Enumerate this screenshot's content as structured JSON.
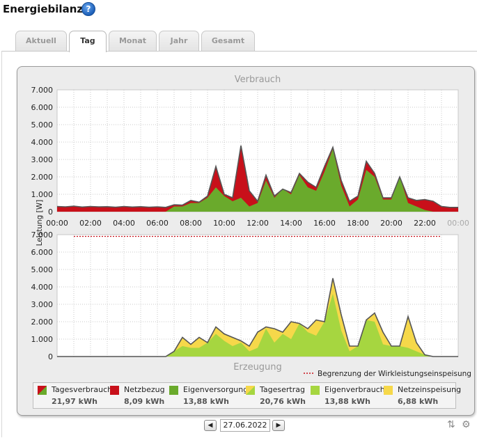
{
  "page": {
    "title": "Energiebilanz"
  },
  "tabs": [
    {
      "label": "Aktuell",
      "active": false
    },
    {
      "label": "Tag",
      "active": true
    },
    {
      "label": "Monat",
      "active": false
    },
    {
      "label": "Jahr",
      "active": false
    },
    {
      "label": "Gesamt",
      "active": false
    }
  ],
  "chart_data": [
    {
      "type": "area",
      "title": "Verbrauch",
      "ylabel": "Leistung [W]",
      "ylim": [
        0,
        7000
      ],
      "yticks": [
        0,
        1000,
        2000,
        3000,
        4000,
        5000,
        6000,
        7000
      ],
      "ytick_labels": [
        "0",
        "1.000",
        "2.000",
        "3.000",
        "4.000",
        "5.000",
        "6.000",
        "7.000"
      ],
      "xlim": [
        0,
        24
      ],
      "xtick_labels": [
        "00:00",
        "02:00",
        "04:00",
        "06:00",
        "08:00",
        "10:00",
        "12:00",
        "14:00",
        "16:00",
        "18:00",
        "20:00",
        "22:00",
        "00:00"
      ],
      "grid": true,
      "x": [
        0,
        0.5,
        1,
        1.5,
        2,
        2.5,
        3,
        3.5,
        4,
        4.5,
        5,
        5.5,
        6,
        6.5,
        7,
        7.5,
        8,
        8.5,
        9,
        9.5,
        10,
        10.5,
        11,
        11.5,
        12,
        12.5,
        13,
        13.5,
        14,
        14.5,
        15,
        15.5,
        16,
        16.5,
        17,
        17.5,
        18,
        18.5,
        19,
        19.5,
        20,
        20.5,
        21,
        21.5,
        22,
        22.5,
        23,
        23.5,
        24
      ],
      "series": [
        {
          "name": "Tagesverbrauch",
          "values": [
            300,
            280,
            320,
            270,
            300,
            280,
            290,
            260,
            300,
            270,
            290,
            260,
            280,
            250,
            400,
            380,
            650,
            550,
            900,
            2600,
            1000,
            800,
            3800,
            1200,
            600,
            2100,
            900,
            1300,
            1100,
            2200,
            1700,
            1400,
            2600,
            3700,
            1800,
            600,
            900,
            2900,
            2200,
            800,
            800,
            2000,
            800,
            650,
            700,
            600,
            300,
            250,
            250
          ]
        },
        {
          "name": "Eigenversorgung",
          "values": [
            0,
            0,
            0,
            0,
            0,
            0,
            0,
            0,
            0,
            0,
            0,
            0,
            0,
            0,
            300,
            300,
            500,
            500,
            800,
            1400,
            900,
            600,
            800,
            300,
            500,
            1800,
            800,
            1300,
            1000,
            2100,
            1400,
            1200,
            2300,
            3600,
            1500,
            300,
            700,
            2400,
            2000,
            700,
            700,
            2000,
            500,
            300,
            100,
            0,
            0,
            0,
            0
          ]
        }
      ]
    },
    {
      "type": "area",
      "title": "Erzeugung",
      "ylabel": "Leistung [W]",
      "ylim": [
        0,
        7000
      ],
      "yticks": [
        0,
        1000,
        2000,
        3000,
        4000,
        5000,
        6000,
        7000
      ],
      "ytick_labels": [
        "0",
        "1.000",
        "2.000",
        "3.000",
        "4.000",
        "5.000",
        "6.000",
        "7.000"
      ],
      "xlim": [
        0,
        24
      ],
      "grid": true,
      "limit_line": {
        "label": "Begrenzung der Wirkleistungseinspeisung",
        "value": 6900
      },
      "x": [
        0,
        0.5,
        1,
        1.5,
        2,
        2.5,
        3,
        3.5,
        4,
        4.5,
        5,
        5.5,
        6,
        6.5,
        7,
        7.5,
        8,
        8.5,
        9,
        9.5,
        10,
        10.5,
        11,
        11.5,
        12,
        12.5,
        13,
        13.5,
        14,
        14.5,
        15,
        15.5,
        16,
        16.5,
        17,
        17.5,
        18,
        18.5,
        19,
        19.5,
        20,
        20.5,
        21,
        21.5,
        22,
        22.5,
        23,
        23.5,
        24
      ],
      "series": [
        {
          "name": "Tagesertrag",
          "values": [
            0,
            0,
            0,
            0,
            0,
            0,
            0,
            0,
            0,
            0,
            0,
            0,
            0,
            0,
            300,
            1100,
            700,
            1100,
            800,
            1700,
            1300,
            1100,
            900,
            600,
            1400,
            1700,
            1600,
            1400,
            2000,
            1900,
            1600,
            2100,
            2000,
            4500,
            2400,
            600,
            600,
            2100,
            2500,
            1400,
            600,
            600,
            2300,
            800,
            100,
            0,
            0,
            0,
            0
          ]
        },
        {
          "name": "Eigenverbrauch",
          "values": [
            0,
            0,
            0,
            0,
            0,
            0,
            0,
            0,
            0,
            0,
            0,
            0,
            0,
            0,
            300,
            600,
            500,
            500,
            800,
            1300,
            900,
            600,
            800,
            300,
            500,
            1600,
            800,
            1300,
            1000,
            1900,
            1400,
            1200,
            2000,
            3600,
            1500,
            300,
            600,
            2100,
            2000,
            700,
            600,
            600,
            500,
            300,
            100,
            0,
            0,
            0,
            0
          ]
        }
      ]
    }
  ],
  "legend": [
    {
      "label": "Tagesverbrauch",
      "value": "21,97 kWh",
      "color": "#c8101a",
      "color2": "#6aaa2c"
    },
    {
      "label": "Netzbezug",
      "value": "8,09 kWh",
      "color": "#c8101a"
    },
    {
      "label": "Eigenversorgung",
      "value": "13,88 kWh",
      "color": "#6aaa2c"
    },
    {
      "label": "Tagesertrag",
      "value": "20,76 kWh",
      "color": "#f6d84a",
      "color2": "#a6d640"
    },
    {
      "label": "Eigenverbrauch",
      "value": "13,88 kWh",
      "color": "#a6d640"
    },
    {
      "label": "Netzeinspeisung",
      "value": "6,88 kWh",
      "color": "#f6d84a"
    }
  ],
  "date_nav": {
    "date": "27.06.2022"
  }
}
